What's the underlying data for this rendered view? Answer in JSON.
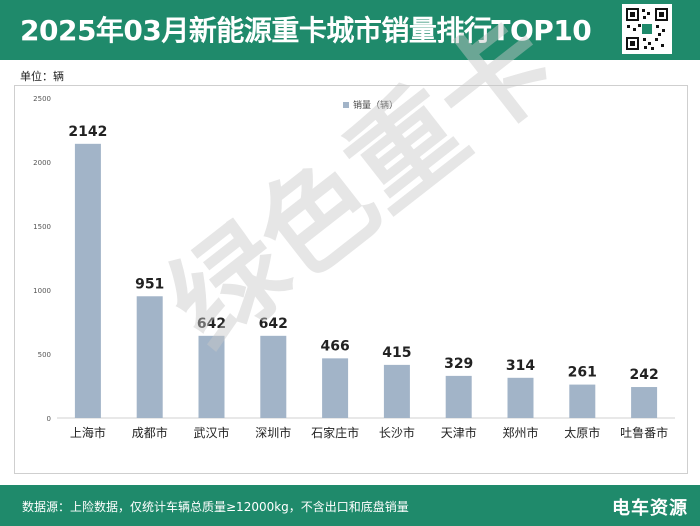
{
  "header": {
    "title": "2025年03月新能源重卡城市销量排行TOP10"
  },
  "unit_label": "单位：辆",
  "footer": {
    "source": "数据源：上险数据，仅统计车辆总质量≥12000kg，不含出口和底盘销量",
    "brand": "电车资源"
  },
  "watermark": "绿色重卡",
  "colors": {
    "header_bg": "#1f8a6b",
    "bar": "#a2b4c8",
    "text": "#222222"
  },
  "chart_data": {
    "type": "bar",
    "categories": [
      "上海市",
      "成都市",
      "武汉市",
      "深圳市",
      "石家庄市",
      "长沙市",
      "天津市",
      "郑州市",
      "太原市",
      "吐鲁番市"
    ],
    "series": [
      {
        "name": "销量（辆）",
        "values": [
          2142,
          951,
          642,
          642,
          466,
          415,
          329,
          314,
          261,
          242
        ]
      }
    ],
    "ylim": [
      0,
      2500
    ],
    "yticks": [
      0,
      500,
      1000,
      1500,
      2000,
      2500
    ],
    "legend_position": "top-center",
    "grid": false
  }
}
